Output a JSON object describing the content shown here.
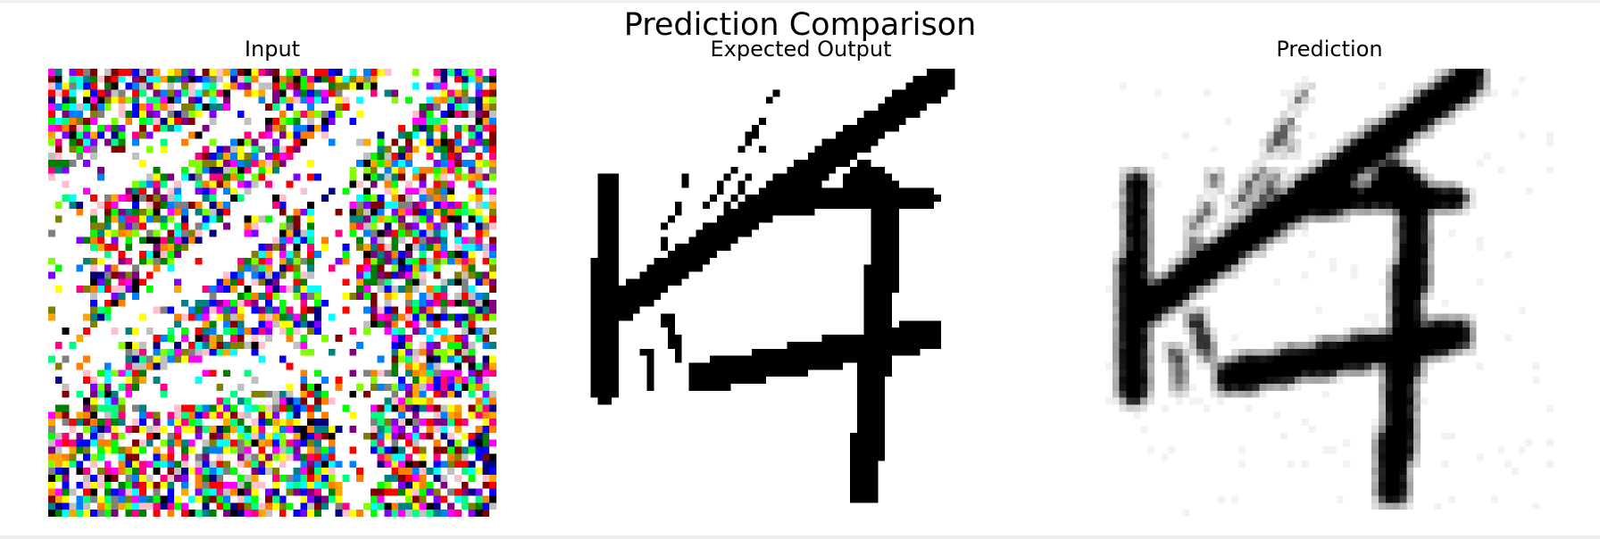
{
  "figure": {
    "title": "Prediction Comparison",
    "panels": [
      {
        "key": "input",
        "title": "Input"
      },
      {
        "key": "expected",
        "title": "Expected Output"
      },
      {
        "key": "prediction",
        "title": "Prediction"
      }
    ]
  },
  "colors": {
    "background": "#ffffff",
    "ink": "#000000",
    "noise_palette": [
      "#ff0000",
      "#00ff00",
      "#0000ff",
      "#ffff00",
      "#ff00ff",
      "#00ffff",
      "#ff8000",
      "#8000ff",
      "#00ff80",
      "#ff0080",
      "#80ff00",
      "#0080ff",
      "#ffffff",
      "#000000",
      "#808080",
      "#c0c0c0",
      "#800000",
      "#008000",
      "#000080",
      "#808000",
      "#800080",
      "#008080",
      "#ffc0cb",
      "#ffa500"
    ]
  }
}
